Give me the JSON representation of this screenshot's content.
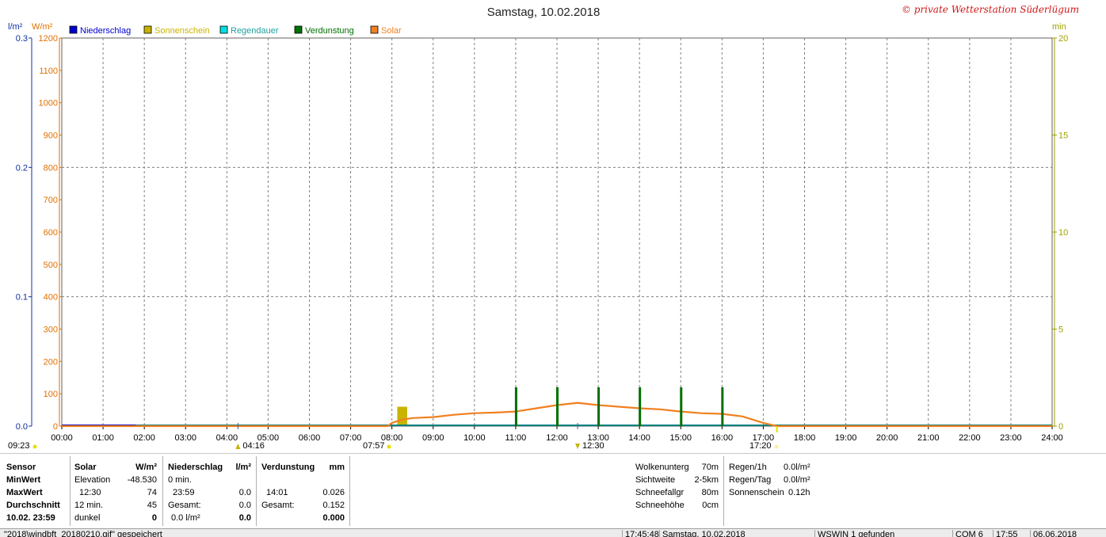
{
  "title": "Samstag, 10.02.2018",
  "credit": "© private Wetterstation Süderlügum",
  "colors": {
    "niederschlag": "#0000cc",
    "sonnenschein": "#c8b400",
    "regendauer": "#00e0e0",
    "verdunstung": "#007000",
    "solar": "#f08020",
    "axis_left_blue": "#1030a0",
    "axis_left_orange": "#e07000",
    "axis_right": "#a0a000",
    "grid": "#808080"
  },
  "legend": {
    "items": [
      {
        "key": "niederschlag",
        "label": "Niederschlag"
      },
      {
        "key": "sonnenschein",
        "label": "Sonnenschein"
      },
      {
        "key": "regendauer",
        "label": "Regendauer"
      },
      {
        "key": "verdunstung",
        "label": "Verdunstung"
      },
      {
        "key": "solar",
        "label": "Solar"
      }
    ]
  },
  "axes": {
    "left_unit_rain": "l/m²",
    "left_unit_solar": "W/m²",
    "right_unit": "min",
    "rain_ticks": [
      "0.0",
      "0.1",
      "0.2",
      "0.3"
    ],
    "solar_ticks": [
      "0",
      "100",
      "200",
      "300",
      "400",
      "500",
      "600",
      "700",
      "800",
      "900",
      "1000",
      "1100",
      "1200"
    ],
    "min_ticks": [
      "0",
      "5",
      "10",
      "15",
      "20"
    ],
    "x_ticks": [
      "00:00",
      "01:00",
      "02:00",
      "03:00",
      "04:00",
      "05:00",
      "06:00",
      "07:00",
      "08:00",
      "09:00",
      "10:00",
      "11:00",
      "12:00",
      "13:00",
      "14:00",
      "15:00",
      "16:00",
      "17:00",
      "18:00",
      "19:00",
      "20:00",
      "21:00",
      "22:00",
      "23:00",
      "24:00"
    ]
  },
  "markers": {
    "sun_morning": "09:23",
    "tide_low": "04:16",
    "sunrise": "07:57",
    "tide_high": "12:30",
    "sunset": "17:20"
  },
  "chart_data": {
    "type": "line",
    "title": "Samstag, 10.02.2018",
    "x_range": [
      "00:00",
      "24:00"
    ],
    "y_left_solar_range": [
      0,
      1200
    ],
    "y_left_rain_range": [
      0,
      0.3
    ],
    "y_right_min_range": [
      0,
      20
    ],
    "grid": true,
    "legend_position": "top-left",
    "series": [
      {
        "name": "Solar",
        "axis": "W/m²",
        "x_hours": [
          0,
          7.9,
          8.0,
          8.25,
          8.5,
          9.0,
          9.5,
          10.0,
          10.5,
          11.0,
          11.5,
          12.0,
          12.5,
          13.0,
          13.5,
          14.0,
          14.5,
          15.0,
          15.5,
          16.0,
          16.5,
          17.0,
          17.33,
          24
        ],
        "values": [
          0,
          0,
          10,
          20,
          25,
          28,
          35,
          40,
          42,
          45,
          55,
          65,
          72,
          65,
          60,
          55,
          52,
          45,
          40,
          38,
          30,
          10,
          0,
          0
        ]
      },
      {
        "name": "Verdunstung",
        "axis": "min",
        "x_hours": [
          11.0,
          12.0,
          13.0,
          14.0,
          15.0,
          16.0
        ],
        "values": [
          2,
          2,
          2,
          2,
          2,
          2
        ]
      },
      {
        "name": "Sonnenschein",
        "axis": "min",
        "x_hours": [
          8.25
        ],
        "values": [
          1
        ]
      },
      {
        "name": "Niederschlag",
        "axis": "l/m²",
        "x_hours": [
          0,
          24
        ],
        "values": [
          0,
          0
        ]
      }
    ]
  },
  "table": {
    "sensor": {
      "header": "Sensor",
      "rows": [
        "MinWert",
        "MaxWert",
        "Durchschnitt",
        "10.02. 23:59"
      ]
    },
    "solar": {
      "header": "Solar",
      "unit": "W/m²",
      "rows": [
        {
          "label": "Elevation",
          "value": "-48.530"
        },
        {
          "label": "12:30",
          "value": "74"
        },
        {
          "label": "12 min.",
          "value": "45"
        },
        {
          "label": "dunkel",
          "value": "0"
        }
      ]
    },
    "niederschlag": {
      "header": "Niederschlag",
      "unit": "l/m²",
      "rows": [
        {
          "label": "0 min.",
          "value": ""
        },
        {
          "label": "23:59",
          "value": "0.0"
        },
        {
          "label": "Gesamt:",
          "value": "0.0"
        },
        {
          "label": "0.0 l/m²",
          "value": "0.0"
        }
      ]
    },
    "verdunstung": {
      "header": "Verdunstung",
      "unit": "mm",
      "rows": [
        {
          "label": "",
          "value": ""
        },
        {
          "label": "14:01",
          "value": "0.026"
        },
        {
          "label": "Gesamt:",
          "value": "0.152"
        },
        {
          "label": "",
          "value": "0.000"
        }
      ]
    },
    "weather": [
      {
        "label": "Wolkenunterg",
        "value": "70m"
      },
      {
        "label": "Sichtweite",
        "value": "2-5km"
      },
      {
        "label": "Schneefallgr",
        "value": "80m"
      },
      {
        "label": "Schneehöhe",
        "value": "0cm"
      }
    ],
    "rain": [
      {
        "label": "Regen/1h",
        "value": "0.0l/m²"
      },
      {
        "label": "Regen/Tag",
        "value": "0.0l/m²"
      },
      {
        "label": "Sonnenschein",
        "value": "0.12h"
      }
    ]
  },
  "statusbar": {
    "file": "\"2018\\windbft_20180210.gif\" gespeichert",
    "time": "17:45:48",
    "date": "Samstag, 10.02.2018",
    "status": "WSWIN 1 gefunden",
    "port": "COM 6",
    "clock": "17:55",
    "today": "06.06.2018"
  }
}
